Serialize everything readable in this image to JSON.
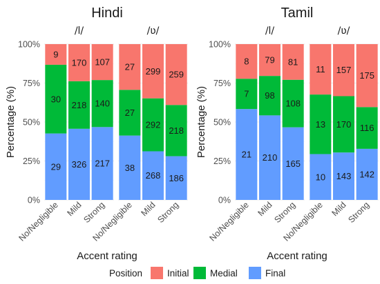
{
  "chart_data": {
    "type": "bar",
    "stacked": true,
    "normalized": true,
    "ylabel": "Percentage (%)",
    "xlabel": "Accent rating",
    "yticks": [
      "0%",
      "25%",
      "50%",
      "75%",
      "100%"
    ],
    "ylim": [
      0,
      100
    ],
    "categories": [
      "No/Negligible",
      "Mild",
      "Strong"
    ],
    "legend": {
      "title": "Position",
      "placement": "bottom",
      "items": [
        {
          "name": "Initial",
          "color": "#F8766D"
        },
        {
          "name": "Medial",
          "color": "#00BA38"
        },
        {
          "name": "Final",
          "color": "#619CFF"
        }
      ]
    },
    "panels": [
      {
        "title": "Hindi",
        "facets": [
          {
            "strip": "/l/",
            "bars": [
              {
                "category": "No/Negligible",
                "Final": 29,
                "Medial": 30,
                "Initial": 9
              },
              {
                "category": "Mild",
                "Final": 326,
                "Medial": 218,
                "Initial": 170
              },
              {
                "category": "Strong",
                "Final": 217,
                "Medial": 140,
                "Initial": 107
              }
            ]
          },
          {
            "strip": "/ʋ/",
            "bars": [
              {
                "category": "No/Negligible",
                "Final": 38,
                "Medial": 27,
                "Initial": 27
              },
              {
                "category": "Mild",
                "Final": 268,
                "Medial": 292,
                "Initial": 299
              },
              {
                "category": "Strong",
                "Final": 186,
                "Medial": 218,
                "Initial": 259
              }
            ]
          }
        ]
      },
      {
        "title": "Tamil",
        "facets": [
          {
            "strip": "/l/",
            "bars": [
              {
                "category": "No/Negligible",
                "Final": 21,
                "Medial": 7,
                "Initial": 8
              },
              {
                "category": "Mild",
                "Final": 210,
                "Medial": 98,
                "Initial": 79
              },
              {
                "category": "Strong",
                "Final": 165,
                "Medial": 108,
                "Initial": 81
              }
            ]
          },
          {
            "strip": "/ʋ/",
            "bars": [
              {
                "category": "No/Negligible",
                "Final": 10,
                "Medial": 13,
                "Initial": 11
              },
              {
                "category": "Mild",
                "Final": 143,
                "Medial": 170,
                "Initial": 157
              },
              {
                "category": "Strong",
                "Final": 142,
                "Medial": 116,
                "Initial": 175
              }
            ]
          }
        ]
      }
    ]
  }
}
